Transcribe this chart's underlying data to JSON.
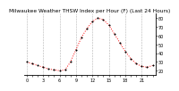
{
  "title": "Milwaukee Weather THSW Index per Hour (F) (Last 24 Hours)",
  "hours": [
    0,
    1,
    2,
    3,
    4,
    5,
    6,
    7,
    8,
    9,
    10,
    11,
    12,
    13,
    14,
    15,
    16,
    17,
    18,
    19,
    20,
    21,
    22,
    23
  ],
  "values": [
    30,
    28,
    26,
    24,
    22,
    21,
    20,
    21,
    30,
    44,
    58,
    68,
    76,
    80,
    78,
    72,
    62,
    52,
    42,
    34,
    28,
    25,
    24,
    26
  ],
  "line_color": "#ff0000",
  "marker_color": "#000000",
  "bg_color": "#ffffff",
  "grid_color": "#aaaaaa",
  "ylim_min": 15,
  "ylim_max": 85,
  "yticks": [
    20,
    30,
    40,
    50,
    60,
    70,
    80
  ],
  "ytick_labels": [
    "20",
    "30",
    "40",
    "50",
    "60",
    "70",
    "80"
  ],
  "xtick_positions": [
    0,
    3,
    6,
    9,
    12,
    15,
    18,
    21
  ],
  "xtick_labels": [
    "0",
    "3",
    "6",
    "9",
    "12",
    "15",
    "18",
    "21"
  ],
  "xlabel_fontsize": 3.5,
  "ylabel_fontsize": 3.5,
  "title_fontsize": 4.2,
  "tick_label_color": "#000000",
  "linewidth": 0.7,
  "markersize": 1.0
}
